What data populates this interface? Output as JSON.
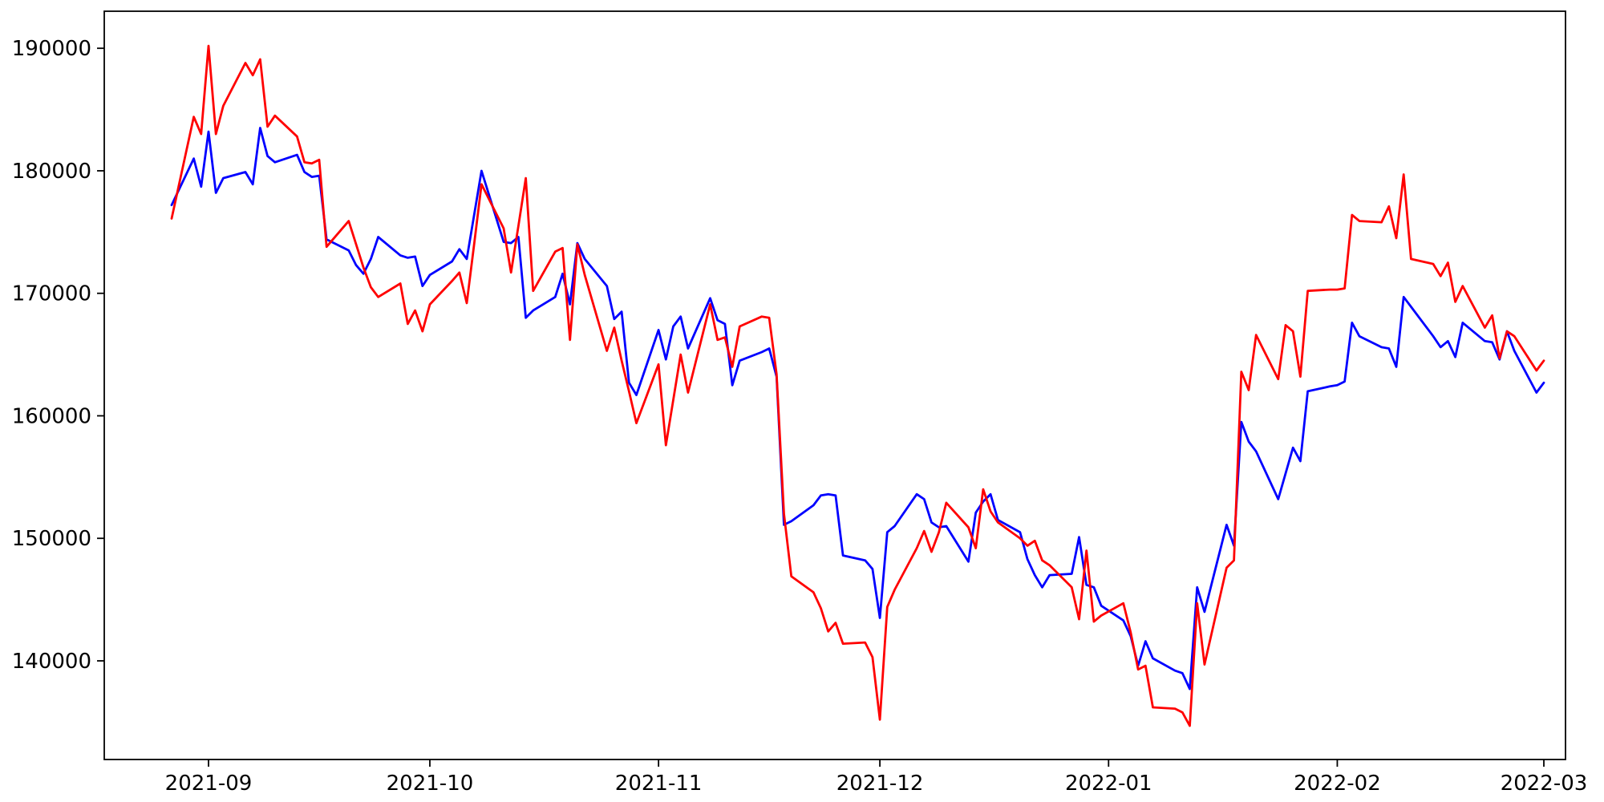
{
  "chart_data": {
    "type": "line",
    "title": "",
    "xlabel": "",
    "ylabel": "",
    "grid": false,
    "legend_position": "none",
    "background_color": "#ffffff",
    "axis_color": "#000000",
    "x_axis": {
      "tick_labels": [
        "2021-09",
        "2021-10",
        "2021-11",
        "2021-12",
        "2022-01",
        "2022-02",
        "2022-03"
      ],
      "tick_dates": [
        "2021-09-01",
        "2021-10-01",
        "2021-11-01",
        "2021-12-01",
        "2022-01-01",
        "2022-02-01",
        "2022-03-01"
      ],
      "range_dates": [
        "2021-08-18",
        "2022-03-04"
      ]
    },
    "y_axis": {
      "tick_labels": [
        "140000",
        "150000",
        "160000",
        "170000",
        "180000",
        "190000"
      ],
      "tick_values": [
        140000,
        150000,
        160000,
        170000,
        180000,
        190000
      ],
      "range": [
        131900,
        193100
      ]
    },
    "series": [
      {
        "name": "blue-series",
        "color": "#0000ff",
        "points": [
          [
            "2021-08-27",
            177200
          ],
          [
            "2021-08-30",
            181000
          ],
          [
            "2021-08-31",
            178700
          ],
          [
            "2021-09-01",
            183200
          ],
          [
            "2021-09-02",
            178200
          ],
          [
            "2021-09-03",
            179400
          ],
          [
            "2021-09-06",
            179900
          ],
          [
            "2021-09-07",
            178900
          ],
          [
            "2021-09-08",
            183500
          ],
          [
            "2021-09-09",
            181200
          ],
          [
            "2021-09-10",
            180700
          ],
          [
            "2021-09-13",
            181300
          ],
          [
            "2021-09-14",
            179900
          ],
          [
            "2021-09-15",
            179500
          ],
          [
            "2021-09-16",
            179600
          ],
          [
            "2021-09-17",
            174400
          ],
          [
            "2021-09-20",
            173500
          ],
          [
            "2021-09-21",
            172300
          ],
          [
            "2021-09-22",
            171600
          ],
          [
            "2021-09-23",
            172800
          ],
          [
            "2021-09-24",
            174600
          ],
          [
            "2021-09-27",
            173100
          ],
          [
            "2021-09-28",
            172900
          ],
          [
            "2021-09-29",
            173000
          ],
          [
            "2021-09-30",
            170600
          ],
          [
            "2021-10-01",
            171500
          ],
          [
            "2021-10-04",
            172600
          ],
          [
            "2021-10-05",
            173600
          ],
          [
            "2021-10-06",
            172800
          ],
          [
            "2021-10-07",
            176400
          ],
          [
            "2021-10-08",
            180000
          ],
          [
            "2021-10-11",
            174200
          ],
          [
            "2021-10-12",
            174100
          ],
          [
            "2021-10-13",
            174600
          ],
          [
            "2021-10-14",
            168000
          ],
          [
            "2021-10-15",
            168600
          ],
          [
            "2021-10-18",
            169700
          ],
          [
            "2021-10-19",
            171600
          ],
          [
            "2021-10-20",
            169100
          ],
          [
            "2021-10-21",
            174100
          ],
          [
            "2021-10-22",
            172800
          ],
          [
            "2021-10-25",
            170600
          ],
          [
            "2021-10-26",
            167900
          ],
          [
            "2021-10-27",
            168500
          ],
          [
            "2021-10-28",
            162700
          ],
          [
            "2021-10-29",
            161700
          ],
          [
            "2021-11-01",
            167000
          ],
          [
            "2021-11-02",
            164600
          ],
          [
            "2021-11-03",
            167300
          ],
          [
            "2021-11-04",
            168100
          ],
          [
            "2021-11-05",
            165500
          ],
          [
            "2021-11-08",
            169600
          ],
          [
            "2021-11-09",
            167800
          ],
          [
            "2021-11-10",
            167500
          ],
          [
            "2021-11-11",
            162500
          ],
          [
            "2021-11-12",
            164500
          ],
          [
            "2021-11-15",
            165200
          ],
          [
            "2021-11-16",
            165500
          ],
          [
            "2021-11-17",
            163200
          ],
          [
            "2021-11-18",
            151100
          ],
          [
            "2021-11-19",
            151400
          ],
          [
            "2021-11-22",
            152700
          ],
          [
            "2021-11-23",
            153500
          ],
          [
            "2021-11-24",
            153600
          ],
          [
            "2021-11-25",
            153500
          ],
          [
            "2021-11-26",
            148600
          ],
          [
            "2021-11-29",
            148200
          ],
          [
            "2021-11-30",
            147500
          ],
          [
            "2021-12-01",
            143500
          ],
          [
            "2021-12-02",
            150500
          ],
          [
            "2021-12-03",
            151000
          ],
          [
            "2021-12-06",
            153600
          ],
          [
            "2021-12-07",
            153200
          ],
          [
            "2021-12-08",
            151300
          ],
          [
            "2021-12-09",
            150900
          ],
          [
            "2021-12-10",
            151000
          ],
          [
            "2021-12-13",
            148100
          ],
          [
            "2021-12-14",
            152100
          ],
          [
            "2021-12-15",
            153000
          ],
          [
            "2021-12-16",
            153600
          ],
          [
            "2021-12-17",
            151500
          ],
          [
            "2021-12-20",
            150500
          ],
          [
            "2021-12-21",
            148300
          ],
          [
            "2021-12-22",
            147000
          ],
          [
            "2021-12-23",
            146000
          ],
          [
            "2021-12-24",
            147000
          ],
          [
            "2021-12-27",
            147100
          ],
          [
            "2021-12-28",
            150100
          ],
          [
            "2021-12-29",
            146200
          ],
          [
            "2021-12-30",
            146000
          ],
          [
            "2021-12-31",
            144500
          ],
          [
            "2022-01-03",
            143300
          ],
          [
            "2022-01-04",
            142000
          ],
          [
            "2022-01-05",
            139600
          ],
          [
            "2022-01-06",
            141600
          ],
          [
            "2022-01-07",
            140200
          ],
          [
            "2022-01-10",
            139200
          ],
          [
            "2022-01-11",
            139000
          ],
          [
            "2022-01-12",
            137700
          ],
          [
            "2022-01-13",
            146000
          ],
          [
            "2022-01-14",
            144000
          ],
          [
            "2022-01-17",
            151100
          ],
          [
            "2022-01-18",
            149400
          ],
          [
            "2022-01-19",
            159500
          ],
          [
            "2022-01-20",
            157900
          ],
          [
            "2022-01-21",
            157100
          ],
          [
            "2022-01-24",
            153200
          ],
          [
            "2022-01-25",
            155300
          ],
          [
            "2022-01-26",
            157400
          ],
          [
            "2022-01-27",
            156300
          ],
          [
            "2022-01-28",
            162000
          ],
          [
            "2022-01-31",
            162400
          ],
          [
            "2022-02-01",
            162500
          ],
          [
            "2022-02-02",
            162800
          ],
          [
            "2022-02-03",
            167600
          ],
          [
            "2022-02-04",
            166500
          ],
          [
            "2022-02-07",
            165600
          ],
          [
            "2022-02-08",
            165500
          ],
          [
            "2022-02-09",
            164000
          ],
          [
            "2022-02-10",
            169700
          ],
          [
            "2022-02-11",
            168900
          ],
          [
            "2022-02-14",
            166500
          ],
          [
            "2022-02-15",
            165600
          ],
          [
            "2022-02-16",
            166100
          ],
          [
            "2022-02-17",
            164800
          ],
          [
            "2022-02-18",
            167600
          ],
          [
            "2022-02-21",
            166100
          ],
          [
            "2022-02-22",
            166000
          ],
          [
            "2022-02-23",
            164600
          ],
          [
            "2022-02-24",
            166900
          ],
          [
            "2022-02-25",
            165300
          ],
          [
            "2022-02-28",
            161900
          ],
          [
            "2022-03-01",
            162700
          ]
        ]
      },
      {
        "name": "red-series",
        "color": "#ff0000",
        "points": [
          [
            "2021-08-27",
            176100
          ],
          [
            "2021-08-30",
            184400
          ],
          [
            "2021-08-31",
            183000
          ],
          [
            "2021-09-01",
            190200
          ],
          [
            "2021-09-02",
            183000
          ],
          [
            "2021-09-03",
            185300
          ],
          [
            "2021-09-06",
            188800
          ],
          [
            "2021-09-07",
            187800
          ],
          [
            "2021-09-08",
            189100
          ],
          [
            "2021-09-09",
            183600
          ],
          [
            "2021-09-10",
            184500
          ],
          [
            "2021-09-13",
            182800
          ],
          [
            "2021-09-14",
            180700
          ],
          [
            "2021-09-15",
            180600
          ],
          [
            "2021-09-16",
            180900
          ],
          [
            "2021-09-17",
            173800
          ],
          [
            "2021-09-20",
            175900
          ],
          [
            "2021-09-21",
            174000
          ],
          [
            "2021-09-22",
            172100
          ],
          [
            "2021-09-23",
            170500
          ],
          [
            "2021-09-24",
            169700
          ],
          [
            "2021-09-27",
            170800
          ],
          [
            "2021-09-28",
            167500
          ],
          [
            "2021-09-29",
            168600
          ],
          [
            "2021-09-30",
            166900
          ],
          [
            "2021-10-01",
            169100
          ],
          [
            "2021-10-04",
            171000
          ],
          [
            "2021-10-05",
            171700
          ],
          [
            "2021-10-06",
            169200
          ],
          [
            "2021-10-07",
            174000
          ],
          [
            "2021-10-08",
            178900
          ],
          [
            "2021-10-11",
            175300
          ],
          [
            "2021-10-12",
            171700
          ],
          [
            "2021-10-13",
            175500
          ],
          [
            "2021-10-14",
            179400
          ],
          [
            "2021-10-15",
            170200
          ],
          [
            "2021-10-18",
            173400
          ],
          [
            "2021-10-19",
            173700
          ],
          [
            "2021-10-20",
            166200
          ],
          [
            "2021-10-21",
            174000
          ],
          [
            "2021-10-22",
            171500
          ],
          [
            "2021-10-25",
            165300
          ],
          [
            "2021-10-26",
            167200
          ],
          [
            "2021-10-27",
            164500
          ],
          [
            "2021-10-28",
            162000
          ],
          [
            "2021-10-29",
            159400
          ],
          [
            "2021-11-01",
            164200
          ],
          [
            "2021-11-02",
            157600
          ],
          [
            "2021-11-03",
            161300
          ],
          [
            "2021-11-04",
            165000
          ],
          [
            "2021-11-05",
            161900
          ],
          [
            "2021-11-08",
            169100
          ],
          [
            "2021-11-09",
            166200
          ],
          [
            "2021-11-10",
            166400
          ],
          [
            "2021-11-11",
            164000
          ],
          [
            "2021-11-12",
            167300
          ],
          [
            "2021-11-15",
            168100
          ],
          [
            "2021-11-16",
            168000
          ],
          [
            "2021-11-17",
            163400
          ],
          [
            "2021-11-18",
            152000
          ],
          [
            "2021-11-19",
            146900
          ],
          [
            "2021-11-22",
            145600
          ],
          [
            "2021-11-23",
            144300
          ],
          [
            "2021-11-24",
            142400
          ],
          [
            "2021-11-25",
            143100
          ],
          [
            "2021-11-26",
            141400
          ],
          [
            "2021-11-29",
            141500
          ],
          [
            "2021-11-30",
            140300
          ],
          [
            "2021-12-01",
            135200
          ],
          [
            "2021-12-02",
            144400
          ],
          [
            "2021-12-03",
            145800
          ],
          [
            "2021-12-06",
            149200
          ],
          [
            "2021-12-07",
            150600
          ],
          [
            "2021-12-08",
            148900
          ],
          [
            "2021-12-09",
            150500
          ],
          [
            "2021-12-10",
            152900
          ],
          [
            "2021-12-13",
            150900
          ],
          [
            "2021-12-14",
            149200
          ],
          [
            "2021-12-15",
            154000
          ],
          [
            "2021-12-16",
            152200
          ],
          [
            "2021-12-17",
            151300
          ],
          [
            "2021-12-20",
            150000
          ],
          [
            "2021-12-21",
            149400
          ],
          [
            "2021-12-22",
            149800
          ],
          [
            "2021-12-23",
            148200
          ],
          [
            "2021-12-24",
            147800
          ],
          [
            "2021-12-27",
            146000
          ],
          [
            "2021-12-28",
            143400
          ],
          [
            "2021-12-29",
            149000
          ],
          [
            "2021-12-30",
            143200
          ],
          [
            "2021-12-31",
            143700
          ],
          [
            "2022-01-03",
            144700
          ],
          [
            "2022-01-04",
            142300
          ],
          [
            "2022-01-05",
            139300
          ],
          [
            "2022-01-06",
            139600
          ],
          [
            "2022-01-07",
            136200
          ],
          [
            "2022-01-10",
            136100
          ],
          [
            "2022-01-11",
            135800
          ],
          [
            "2022-01-12",
            134700
          ],
          [
            "2022-01-13",
            144700
          ],
          [
            "2022-01-14",
            139700
          ],
          [
            "2022-01-17",
            147600
          ],
          [
            "2022-01-18",
            148200
          ],
          [
            "2022-01-19",
            163600
          ],
          [
            "2022-01-20",
            162100
          ],
          [
            "2022-01-21",
            166600
          ],
          [
            "2022-01-24",
            163000
          ],
          [
            "2022-01-25",
            167400
          ],
          [
            "2022-01-26",
            166900
          ],
          [
            "2022-01-27",
            163200
          ],
          [
            "2022-01-28",
            170200
          ],
          [
            "2022-01-31",
            170300
          ],
          [
            "2022-02-01",
            170300
          ],
          [
            "2022-02-02",
            170400
          ],
          [
            "2022-02-03",
            176400
          ],
          [
            "2022-02-04",
            175900
          ],
          [
            "2022-02-07",
            175800
          ],
          [
            "2022-02-08",
            177100
          ],
          [
            "2022-02-09",
            174500
          ],
          [
            "2022-02-10",
            179700
          ],
          [
            "2022-02-11",
            172800
          ],
          [
            "2022-02-14",
            172400
          ],
          [
            "2022-02-15",
            171400
          ],
          [
            "2022-02-16",
            172500
          ],
          [
            "2022-02-17",
            169300
          ],
          [
            "2022-02-18",
            170600
          ],
          [
            "2022-02-21",
            167200
          ],
          [
            "2022-02-22",
            168200
          ],
          [
            "2022-02-23",
            164700
          ],
          [
            "2022-02-24",
            166900
          ],
          [
            "2022-02-25",
            166500
          ],
          [
            "2022-02-28",
            163700
          ],
          [
            "2022-03-01",
            164500
          ]
        ]
      }
    ]
  }
}
